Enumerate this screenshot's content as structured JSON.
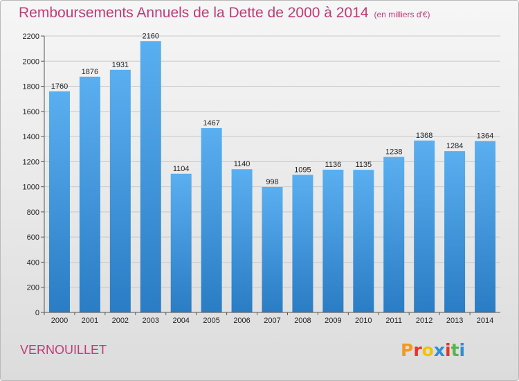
{
  "chart_data": {
    "type": "bar",
    "title": "Remboursements Annuels de la Dette de 2000 à 2014",
    "unit": "(en milliers d'€)",
    "categories": [
      "2000",
      "2001",
      "2002",
      "2003",
      "2004",
      "2005",
      "2006",
      "2007",
      "2008",
      "2009",
      "2010",
      "2011",
      "2012",
      "2013",
      "2014"
    ],
    "values": [
      1760,
      1876,
      1931,
      2160,
      1104,
      1467,
      1140,
      998,
      1095,
      1136,
      1135,
      1238,
      1368,
      1284,
      1364
    ],
    "ylim": [
      0,
      2200
    ],
    "yticks": [
      0,
      200,
      400,
      600,
      800,
      1000,
      1200,
      1400,
      1600,
      1800,
      2000,
      2200
    ],
    "grid": true,
    "bar_color": "#3a8fd6"
  },
  "commune": "VERNOUILLET",
  "logo": {
    "letters": [
      "P",
      "r",
      "o",
      "x",
      "i",
      "t",
      "i"
    ],
    "colors": [
      "#f39a1c",
      "#e6342b",
      "#f2c300",
      "#2c8fd6",
      "#e6342b",
      "#51b848",
      "#2c8fd6"
    ]
  },
  "colors": {
    "title": "#c13b77",
    "grid": "#c8c8c8"
  }
}
